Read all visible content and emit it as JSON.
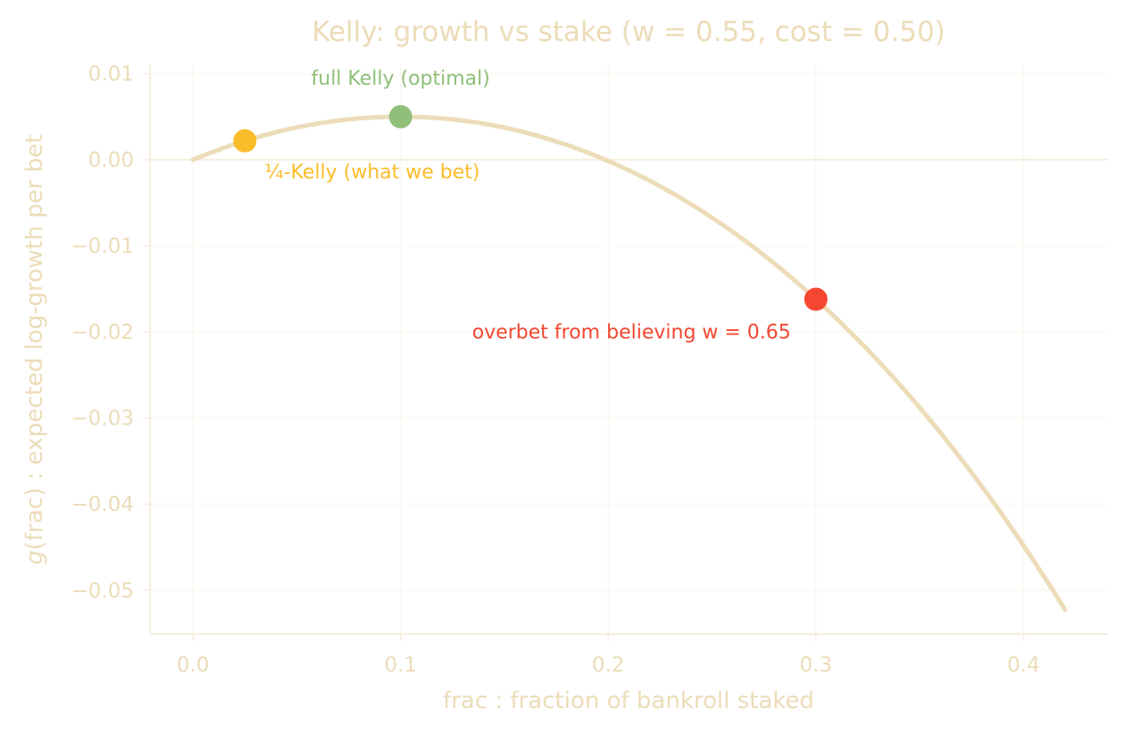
{
  "chart_data": {
    "type": "line",
    "title": "Kelly: growth vs stake  (w = 0.55, cost = 0.50)",
    "xlabel": "frac : fraction of bankroll staked",
    "ylabel_italic": "g",
    "ylabel_rest": "(frac) : expected log-growth per bet",
    "xlim": [
      -0.0207,
      0.4407
    ],
    "ylim": [
      -0.0551,
      0.0111
    ],
    "x_ticks": [
      0.0,
      0.1,
      0.2,
      0.3,
      0.4
    ],
    "x_tick_labels": [
      "0.0",
      "0.1",
      "0.2",
      "0.3",
      "0.4"
    ],
    "y_ticks": [
      0.01,
      0.0,
      -0.01,
      -0.02,
      -0.03,
      -0.04,
      -0.05
    ],
    "y_tick_labels": [
      "0.01",
      "0.00",
      "−0.01",
      "−0.02",
      "−0.03",
      "−0.04",
      "−0.05"
    ],
    "grid": true,
    "zero_line": true,
    "model": {
      "w": 0.55,
      "cost": 0.5,
      "x_max": 0.42
    },
    "series": [
      {
        "color": "#ecdcb8",
        "function": "g(f) = w*ln(1+b f) + (1-w)*ln(1-f), b = 1/cost - 1"
      }
    ],
    "points": [
      {
        "x": 0.025,
        "y": 0.0022,
        "color": "#fbbc2a",
        "label": "¼-Kelly (what we bet)"
      },
      {
        "x": 0.1,
        "y": 0.005,
        "color": "#8fbf78",
        "label": "full Kelly (optimal)"
      },
      {
        "x": 0.3,
        "y": -0.0162,
        "color": "#f44731",
        "label": "overbet from believing w = 0.65"
      }
    ],
    "colors": {
      "text": "#ecdcb8",
      "axis": "#f6eedd",
      "grid": "#fbf7ee",
      "curve": "#ecdcb8"
    }
  }
}
